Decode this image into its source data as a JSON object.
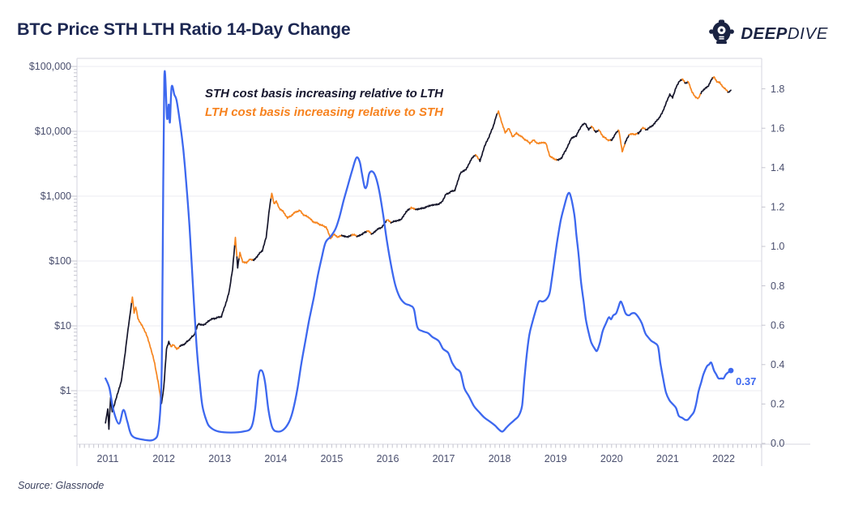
{
  "header": {
    "title": "BTC Price STH LTH Ratio 14-Day Change",
    "brand_bold": "DEEP",
    "brand_light": "DIVE"
  },
  "footer": {
    "source": "Source: Glassnode"
  },
  "annotations": {
    "line1": "STH cost basis increasing relative to LTH",
    "line2": "LTH cost basis increasing relative to STH",
    "last_value_label": "0.37"
  },
  "colors": {
    "title": "#1c2752",
    "brand": "#1a2342",
    "price_sth": "#16162b",
    "price_lth": "#f6851f",
    "ratio": "#3d68ef",
    "grid": "#ebebf2",
    "frame": "#d6d6df",
    "tick": "#c4c4cf",
    "axis_text": "#4a4f6e"
  },
  "chart_data": {
    "type": "line",
    "title": "BTC Price STH LTH Ratio 14-Day Change",
    "x_axis": {
      "labels": [
        "2011",
        "2012",
        "2013",
        "2014",
        "2015",
        "2016",
        "2017",
        "2018",
        "2019",
        "2020",
        "2021",
        "2022"
      ],
      "range": [
        2010.45,
        2022.68
      ]
    },
    "left_axis": {
      "scale": "log",
      "unit": "USD",
      "labels": [
        "$100,000",
        "$10,000",
        "$1,000",
        "$100",
        "$10",
        "$1"
      ],
      "values": [
        100000,
        10000,
        1000,
        100,
        10,
        1
      ]
    },
    "right_axis": {
      "labels": [
        "1.8",
        "1.6",
        "1.4",
        "1.2",
        "1.0",
        "0.8",
        "0.6",
        "0.4",
        "0.2",
        "0.0"
      ],
      "values": [
        1.8,
        1.6,
        1.4,
        1.2,
        1.0,
        0.8,
        0.6,
        0.4,
        0.2,
        0.0
      ],
      "range": [
        0,
        1.86
      ]
    },
    "grid": "horizontal-only",
    "legend_position": "none",
    "series": [
      {
        "name": "BTC Price — STH cost basis increasing relative to LTH",
        "color": "#16162b",
        "axis": "left"
      },
      {
        "name": "BTC Price — LTH cost basis increasing relative to STH",
        "color": "#f6851f",
        "axis": "left"
      },
      {
        "name": "STH LTH Ratio 14-Day Change",
        "color": "#3d68ef",
        "axis": "right"
      }
    ],
    "last_ratio_value": 0.37,
    "price_points": [
      [
        2010.96,
        0.32,
        0
      ],
      [
        2011.0,
        0.52,
        0
      ],
      [
        2011.02,
        0.26,
        0
      ],
      [
        2011.05,
        0.78,
        0
      ],
      [
        2011.08,
        0.47,
        0
      ],
      [
        2011.12,
        0.62,
        0
      ],
      [
        2011.18,
        0.92,
        0
      ],
      [
        2011.24,
        1.4,
        0
      ],
      [
        2011.3,
        3.2,
        0
      ],
      [
        2011.36,
        8.5,
        0
      ],
      [
        2011.41,
        18,
        0
      ],
      [
        2011.44,
        28,
        0
      ],
      [
        2011.47,
        16,
        1
      ],
      [
        2011.5,
        20,
        1
      ],
      [
        2011.54,
        13,
        1
      ],
      [
        2011.6,
        10.5,
        1
      ],
      [
        2011.68,
        7.8,
        1
      ],
      [
        2011.76,
        4.8,
        1
      ],
      [
        2011.84,
        2.6,
        1
      ],
      [
        2011.91,
        1.2,
        1
      ],
      [
        2011.96,
        0.62,
        1
      ],
      [
        2012.0,
        1.1,
        0
      ],
      [
        2012.05,
        4.4,
        0
      ],
      [
        2012.09,
        5.6,
        0
      ],
      [
        2012.13,
        4.7,
        0
      ],
      [
        2012.17,
        5.1,
        1
      ],
      [
        2012.23,
        4.4,
        1
      ],
      [
        2012.3,
        4.9,
        1
      ],
      [
        2012.38,
        5.3,
        0
      ],
      [
        2012.46,
        6.2,
        0
      ],
      [
        2012.54,
        7.2,
        0
      ],
      [
        2012.62,
        10.8,
        0
      ],
      [
        2012.7,
        10.2,
        0
      ],
      [
        2012.78,
        11.4,
        0
      ],
      [
        2012.87,
        12.8,
        0
      ],
      [
        2012.95,
        13.3,
        0
      ],
      [
        2013.03,
        14,
        0
      ],
      [
        2013.1,
        21,
        0
      ],
      [
        2013.17,
        34,
        0
      ],
      [
        2013.23,
        75,
        0
      ],
      [
        2013.28,
        235,
        0
      ],
      [
        2013.32,
        80,
        1
      ],
      [
        2013.36,
        135,
        0
      ],
      [
        2013.41,
        98,
        1
      ],
      [
        2013.48,
        93,
        1
      ],
      [
        2013.54,
        108,
        1
      ],
      [
        2013.61,
        102,
        1
      ],
      [
        2013.68,
        122,
        0
      ],
      [
        2013.76,
        145,
        0
      ],
      [
        2013.83,
        230,
        0
      ],
      [
        2013.89,
        680,
        0
      ],
      [
        2013.93,
        1120,
        0
      ],
      [
        2013.97,
        760,
        1
      ],
      [
        2014.01,
        840,
        1
      ],
      [
        2014.07,
        640,
        1
      ],
      [
        2014.14,
        570,
        1
      ],
      [
        2014.21,
        460,
        1
      ],
      [
        2014.29,
        510,
        1
      ],
      [
        2014.36,
        575,
        1
      ],
      [
        2014.43,
        600,
        1
      ],
      [
        2014.51,
        505,
        1
      ],
      [
        2014.59,
        475,
        1
      ],
      [
        2014.66,
        405,
        1
      ],
      [
        2014.74,
        385,
        1
      ],
      [
        2014.82,
        355,
        1
      ],
      [
        2014.9,
        335,
        1
      ],
      [
        2014.98,
        225,
        1
      ],
      [
        2015.04,
        255,
        1
      ],
      [
        2015.11,
        235,
        1
      ],
      [
        2015.19,
        248,
        1
      ],
      [
        2015.28,
        237,
        0
      ],
      [
        2015.37,
        257,
        0
      ],
      [
        2015.46,
        242,
        1
      ],
      [
        2015.55,
        262,
        0
      ],
      [
        2015.64,
        292,
        0
      ],
      [
        2015.72,
        263,
        1
      ],
      [
        2015.81,
        305,
        0
      ],
      [
        2015.9,
        335,
        0
      ],
      [
        2015.99,
        432,
        0
      ],
      [
        2016.07,
        392,
        1
      ],
      [
        2016.15,
        418,
        0
      ],
      [
        2016.24,
        442,
        0
      ],
      [
        2016.33,
        575,
        0
      ],
      [
        2016.42,
        668,
        0
      ],
      [
        2016.51,
        622,
        1
      ],
      [
        2016.6,
        642,
        0
      ],
      [
        2016.69,
        678,
        0
      ],
      [
        2016.78,
        715,
        0
      ],
      [
        2016.87,
        735,
        0
      ],
      [
        2016.96,
        795,
        0
      ],
      [
        2017.04,
        1060,
        0
      ],
      [
        2017.12,
        1160,
        0
      ],
      [
        2017.2,
        1240,
        0
      ],
      [
        2017.3,
        2250,
        0
      ],
      [
        2017.4,
        2580,
        0
      ],
      [
        2017.5,
        3850,
        0
      ],
      [
        2017.58,
        4350,
        0
      ],
      [
        2017.65,
        3450,
        1
      ],
      [
        2017.72,
        5600,
        0
      ],
      [
        2017.8,
        7900,
        0
      ],
      [
        2017.88,
        11500,
        0
      ],
      [
        2017.94,
        17500,
        0
      ],
      [
        2017.98,
        20500,
        0
      ],
      [
        2018.04,
        13200,
        1
      ],
      [
        2018.1,
        9600,
        1
      ],
      [
        2018.16,
        11200,
        1
      ],
      [
        2018.23,
        8300,
        1
      ],
      [
        2018.3,
        9300,
        1
      ],
      [
        2018.38,
        8400,
        1
      ],
      [
        2018.46,
        7400,
        1
      ],
      [
        2018.54,
        6600,
        1
      ],
      [
        2018.61,
        7300,
        1
      ],
      [
        2018.69,
        6400,
        1
      ],
      [
        2018.76,
        6800,
        1
      ],
      [
        2018.83,
        6450,
        1
      ],
      [
        2018.9,
        4050,
        1
      ],
      [
        2018.97,
        3800,
        1
      ],
      [
        2019.04,
        3550,
        1
      ],
      [
        2019.11,
        3950,
        0
      ],
      [
        2019.19,
        5300,
        0
      ],
      [
        2019.28,
        7900,
        0
      ],
      [
        2019.37,
        8600,
        0
      ],
      [
        2019.46,
        12100,
        0
      ],
      [
        2019.53,
        13300,
        0
      ],
      [
        2019.59,
        10700,
        0
      ],
      [
        2019.65,
        11800,
        0
      ],
      [
        2019.71,
        9900,
        1
      ],
      [
        2019.78,
        10300,
        0
      ],
      [
        2019.85,
        8300,
        1
      ],
      [
        2019.93,
        7400,
        1
      ],
      [
        2020.0,
        7200,
        1
      ],
      [
        2020.07,
        9300,
        0
      ],
      [
        2020.13,
        10300,
        0
      ],
      [
        2020.19,
        4900,
        1
      ],
      [
        2020.25,
        6900,
        1
      ],
      [
        2020.32,
        9100,
        0
      ],
      [
        2020.4,
        9000,
        1
      ],
      [
        2020.48,
        9250,
        1
      ],
      [
        2020.55,
        11300,
        0
      ],
      [
        2020.62,
        10600,
        1
      ],
      [
        2020.7,
        11700,
        0
      ],
      [
        2020.77,
        13300,
        0
      ],
      [
        2020.84,
        15800,
        0
      ],
      [
        2020.91,
        19600,
        0
      ],
      [
        2020.98,
        28500,
        0
      ],
      [
        2021.04,
        36500,
        0
      ],
      [
        2021.09,
        33000,
        0
      ],
      [
        2021.15,
        48000,
        0
      ],
      [
        2021.21,
        58500,
        0
      ],
      [
        2021.27,
        64000,
        0
      ],
      [
        2021.32,
        55500,
        1
      ],
      [
        2021.37,
        59000,
        0
      ],
      [
        2021.43,
        41000,
        1
      ],
      [
        2021.49,
        34500,
        1
      ],
      [
        2021.55,
        32000,
        1
      ],
      [
        2021.61,
        40500,
        1
      ],
      [
        2021.67,
        46500,
        0
      ],
      [
        2021.73,
        49500,
        0
      ],
      [
        2021.79,
        64500,
        0
      ],
      [
        2021.83,
        69000,
        0
      ],
      [
        2021.88,
        58500,
        1
      ],
      [
        2021.93,
        57500,
        1
      ],
      [
        2021.99,
        47500,
        1
      ],
      [
        2022.05,
        43500,
        1
      ],
      [
        2022.09,
        39500,
        1
      ],
      [
        2022.13,
        43000,
        0
      ]
    ],
    "ratio_points": [
      [
        2010.96,
        0.33
      ],
      [
        2011.03,
        0.28
      ],
      [
        2011.1,
        0.17
      ],
      [
        2011.2,
        0.1
      ],
      [
        2011.28,
        0.17
      ],
      [
        2011.35,
        0.11
      ],
      [
        2011.43,
        0.04
      ],
      [
        2011.61,
        0.02
      ],
      [
        2011.83,
        0.02
      ],
      [
        2011.91,
        0.08
      ],
      [
        2011.96,
        0.32
      ],
      [
        2011.98,
        0.89
      ],
      [
        2012.01,
        1.86
      ],
      [
        2012.06,
        1.65
      ],
      [
        2012.09,
        1.72
      ],
      [
        2012.11,
        1.63
      ],
      [
        2012.14,
        1.81
      ],
      [
        2012.19,
        1.77
      ],
      [
        2012.23,
        1.74
      ],
      [
        2012.29,
        1.63
      ],
      [
        2012.35,
        1.49
      ],
      [
        2012.4,
        1.33
      ],
      [
        2012.46,
        1.1
      ],
      [
        2012.52,
        0.81
      ],
      [
        2012.58,
        0.52
      ],
      [
        2012.64,
        0.32
      ],
      [
        2012.69,
        0.19
      ],
      [
        2012.77,
        0.11
      ],
      [
        2012.84,
        0.08
      ],
      [
        2012.98,
        0.06
      ],
      [
        2013.2,
        0.055
      ],
      [
        2013.42,
        0.06
      ],
      [
        2013.56,
        0.08
      ],
      [
        2013.63,
        0.17
      ],
      [
        2013.69,
        0.34
      ],
      [
        2013.75,
        0.37
      ],
      [
        2013.81,
        0.31
      ],
      [
        2013.87,
        0.17
      ],
      [
        2013.94,
        0.08
      ],
      [
        2014.03,
        0.06
      ],
      [
        2014.14,
        0.07
      ],
      [
        2014.24,
        0.11
      ],
      [
        2014.31,
        0.17
      ],
      [
        2014.39,
        0.28
      ],
      [
        2014.46,
        0.41
      ],
      [
        2014.53,
        0.52
      ],
      [
        2014.6,
        0.63
      ],
      [
        2014.68,
        0.74
      ],
      [
        2014.75,
        0.85
      ],
      [
        2014.82,
        0.94
      ],
      [
        2014.89,
        1.02
      ],
      [
        2014.98,
        1.05
      ],
      [
        2015.07,
        1.09
      ],
      [
        2015.14,
        1.15
      ],
      [
        2015.21,
        1.23
      ],
      [
        2015.28,
        1.3
      ],
      [
        2015.36,
        1.38
      ],
      [
        2015.44,
        1.45
      ],
      [
        2015.5,
        1.43
      ],
      [
        2015.54,
        1.37
      ],
      [
        2015.59,
        1.3
      ],
      [
        2015.63,
        1.31
      ],
      [
        2015.67,
        1.37
      ],
      [
        2015.73,
        1.38
      ],
      [
        2015.79,
        1.35
      ],
      [
        2015.85,
        1.28
      ],
      [
        2015.92,
        1.16
      ],
      [
        2015.99,
        1.02
      ],
      [
        2016.07,
        0.89
      ],
      [
        2016.14,
        0.8
      ],
      [
        2016.22,
        0.74
      ],
      [
        2016.31,
        0.71
      ],
      [
        2016.4,
        0.7
      ],
      [
        2016.47,
        0.68
      ],
      [
        2016.53,
        0.59
      ],
      [
        2016.62,
        0.57
      ],
      [
        2016.72,
        0.56
      ],
      [
        2016.8,
        0.54
      ],
      [
        2016.91,
        0.52
      ],
      [
        2016.99,
        0.48
      ],
      [
        2017.08,
        0.46
      ],
      [
        2017.15,
        0.41
      ],
      [
        2017.22,
        0.38
      ],
      [
        2017.3,
        0.36
      ],
      [
        2017.37,
        0.28
      ],
      [
        2017.45,
        0.24
      ],
      [
        2017.54,
        0.19
      ],
      [
        2017.63,
        0.16
      ],
      [
        2017.73,
        0.13
      ],
      [
        2017.83,
        0.11
      ],
      [
        2017.92,
        0.09
      ],
      [
        2017.99,
        0.07
      ],
      [
        2018.05,
        0.06
      ],
      [
        2018.12,
        0.08
      ],
      [
        2018.19,
        0.1
      ],
      [
        2018.27,
        0.12
      ],
      [
        2018.34,
        0.14
      ],
      [
        2018.4,
        0.19
      ],
      [
        2018.44,
        0.32
      ],
      [
        2018.48,
        0.44
      ],
      [
        2018.53,
        0.55
      ],
      [
        2018.58,
        0.61
      ],
      [
        2018.64,
        0.67
      ],
      [
        2018.7,
        0.72
      ],
      [
        2018.77,
        0.72
      ],
      [
        2018.83,
        0.73
      ],
      [
        2018.89,
        0.76
      ],
      [
        2018.93,
        0.83
      ],
      [
        2018.98,
        0.93
      ],
      [
        2019.03,
        1.03
      ],
      [
        2019.09,
        1.13
      ],
      [
        2019.15,
        1.2
      ],
      [
        2019.21,
        1.26
      ],
      [
        2019.25,
        1.27
      ],
      [
        2019.29,
        1.23
      ],
      [
        2019.34,
        1.15
      ],
      [
        2019.37,
        1.06
      ],
      [
        2019.41,
        0.96
      ],
      [
        2019.45,
        0.83
      ],
      [
        2019.5,
        0.72
      ],
      [
        2019.54,
        0.63
      ],
      [
        2019.6,
        0.55
      ],
      [
        2019.64,
        0.51
      ],
      [
        2019.7,
        0.48
      ],
      [
        2019.74,
        0.47
      ],
      [
        2019.79,
        0.51
      ],
      [
        2019.84,
        0.57
      ],
      [
        2019.9,
        0.61
      ],
      [
        2019.95,
        0.64
      ],
      [
        2019.99,
        0.63
      ],
      [
        2020.03,
        0.65
      ],
      [
        2020.08,
        0.66
      ],
      [
        2020.12,
        0.69
      ],
      [
        2020.16,
        0.72
      ],
      [
        2020.2,
        0.7
      ],
      [
        2020.25,
        0.66
      ],
      [
        2020.31,
        0.65
      ],
      [
        2020.36,
        0.66
      ],
      [
        2020.42,
        0.66
      ],
      [
        2020.48,
        0.64
      ],
      [
        2020.54,
        0.61
      ],
      [
        2020.6,
        0.56
      ],
      [
        2020.65,
        0.54
      ],
      [
        2020.71,
        0.52
      ],
      [
        2020.77,
        0.51
      ],
      [
        2020.83,
        0.49
      ],
      [
        2020.87,
        0.41
      ],
      [
        2020.92,
        0.33
      ],
      [
        2020.97,
        0.26
      ],
      [
        2021.03,
        0.22
      ],
      [
        2021.09,
        0.2
      ],
      [
        2021.15,
        0.18
      ],
      [
        2021.2,
        0.14
      ],
      [
        2021.26,
        0.13
      ],
      [
        2021.31,
        0.12
      ],
      [
        2021.36,
        0.12
      ],
      [
        2021.42,
        0.14
      ],
      [
        2021.47,
        0.16
      ],
      [
        2021.51,
        0.2
      ],
      [
        2021.55,
        0.26
      ],
      [
        2021.6,
        0.31
      ],
      [
        2021.64,
        0.35
      ],
      [
        2021.7,
        0.39
      ],
      [
        2021.74,
        0.4
      ],
      [
        2021.78,
        0.41
      ],
      [
        2021.83,
        0.37
      ],
      [
        2021.87,
        0.35
      ],
      [
        2021.91,
        0.33
      ],
      [
        2021.96,
        0.33
      ],
      [
        2022.0,
        0.33
      ],
      [
        2022.04,
        0.35
      ],
      [
        2022.08,
        0.36
      ],
      [
        2022.13,
        0.37
      ]
    ]
  }
}
